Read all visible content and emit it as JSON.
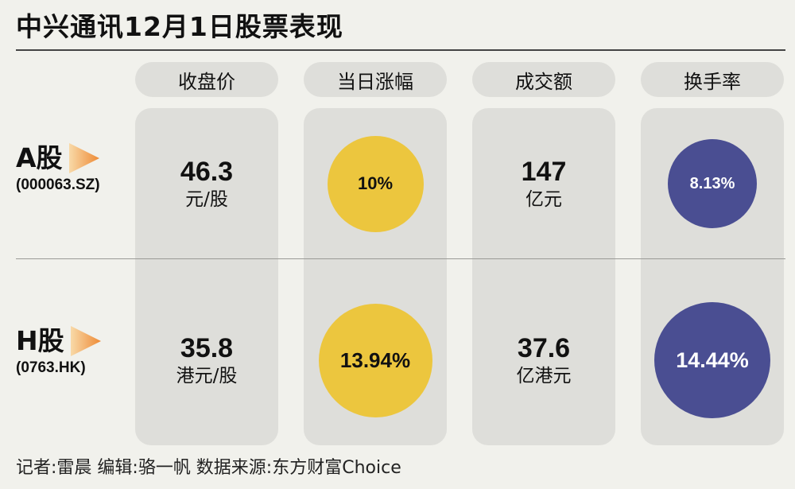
{
  "title": "中兴通讯12月1日股票表现",
  "footer": "记者:雷晨  编辑:骆一帆  数据来源:东方财富Choice",
  "colors": {
    "yellow_bubble": "#ecc63e",
    "blue_bubble": "#4a4e92",
    "cell_bg": "#dededa",
    "arrow": "#f0a050"
  },
  "chart_data": {
    "type": "table",
    "columns": [
      "收盘价",
      "当日涨幅",
      "成交额",
      "换手率"
    ],
    "rows": [
      {
        "name": "A股",
        "code": "(000063.SZ)",
        "close": {
          "value": "46.3",
          "unit": "元/股"
        },
        "change": {
          "text": "10%",
          "value": 10
        },
        "turnover_amount": {
          "value": "147",
          "unit": "亿元"
        },
        "turnover_rate": {
          "text": "8.13%",
          "value": 8.13
        }
      },
      {
        "name": "H股",
        "code": "(0763.HK)",
        "close": {
          "value": "35.8",
          "unit": "港元/股"
        },
        "change": {
          "text": "13.94%",
          "value": 13.94
        },
        "turnover_amount": {
          "value": "37.6",
          "unit": "亿港元"
        },
        "turnover_rate": {
          "text": "14.44%",
          "value": 14.44
        }
      }
    ]
  }
}
